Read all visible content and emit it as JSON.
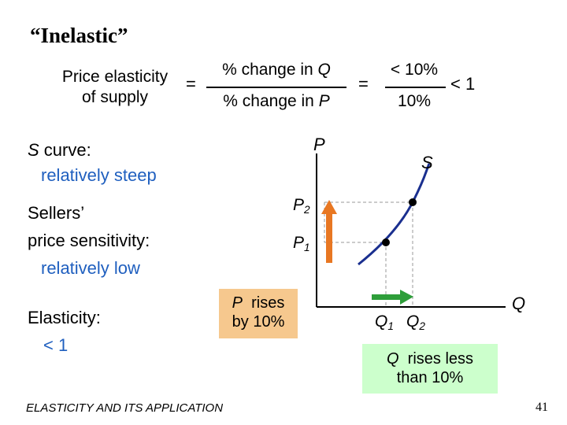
{
  "title": "“Inelastic”",
  "formula": {
    "lhs": [
      "Price elasticity",
      "of supply"
    ],
    "equals_1": "=",
    "numerator": {
      "text": "% change in ",
      "var": "Q"
    },
    "denominator": {
      "text": "% change in ",
      "var": "P"
    },
    "equals_2": "=",
    "ratio_numerator": "< 10%",
    "ratio_denominator": "10%",
    "result": "< 1"
  },
  "notes": {
    "curve": {
      "var": "S",
      "label": " curve:",
      "value": "relatively steep"
    },
    "sensitivity": {
      "label": [
        "Sellers’",
        "price sensitivity:"
      ],
      "value": "relatively low"
    },
    "elasticity": {
      "label": "Elasticity:",
      "value": "< 1"
    }
  },
  "graph": {
    "y_axis": "P",
    "x_axis": "Q",
    "curve": "S",
    "p2": {
      "main": "P",
      "sub": "2"
    },
    "p1": {
      "main": "P",
      "sub": "1"
    },
    "q1": {
      "main": "Q",
      "sub": "1"
    },
    "q2": {
      "main": "Q",
      "sub": "2"
    }
  },
  "callouts": {
    "price": {
      "var": "P",
      "text": [
        "  rises",
        "by 10%"
      ]
    },
    "quantity": {
      "var": "Q",
      "text": [
        "  rises less",
        "than 10%"
      ]
    }
  },
  "footer": "ELASTICITY AND ITS APPLICATION",
  "page_number": 41
}
